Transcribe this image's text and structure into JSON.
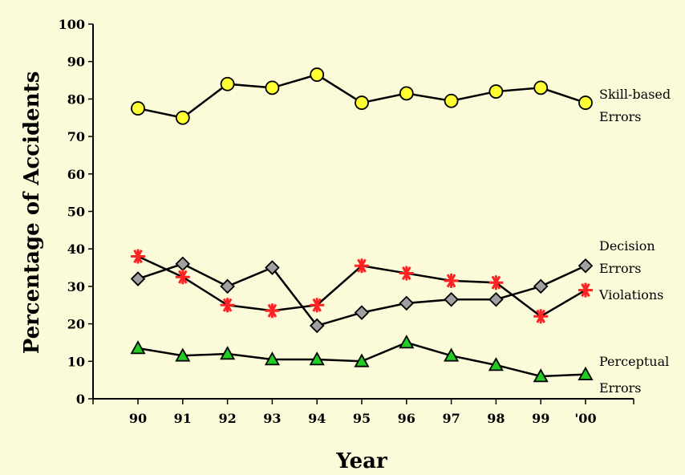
{
  "chart_data": {
    "type": "line",
    "title": "",
    "xlabel": "Year",
    "ylabel": "Percentage of Accidents",
    "categories": [
      "90",
      "91",
      "92",
      "93",
      "94",
      "95",
      "96",
      "97",
      "98",
      "99",
      "'00"
    ],
    "ylim": [
      0,
      100
    ],
    "yticks": [
      "0",
      "10",
      "20",
      "30",
      "40",
      "50",
      "60",
      "70",
      "80",
      "90",
      "100"
    ],
    "grid": false,
    "legend": "none (series labeled at right end of lines)",
    "background": "#fbfbda",
    "series": [
      {
        "name": "Skill-based Errors",
        "label_lines": [
          "Skill-based",
          "Errors"
        ],
        "marker": "circle",
        "fill": "#ffff33",
        "values": [
          77.5,
          75,
          84,
          83,
          86.5,
          79,
          81.5,
          79.5,
          82,
          83,
          79
        ]
      },
      {
        "name": "Decision Errors",
        "label_lines": [
          "Decision",
          "Errors"
        ],
        "marker": "diamond",
        "fill": "#a0a0a0",
        "values": [
          32,
          36,
          30,
          35,
          19.5,
          23,
          25.5,
          26.5,
          26.5,
          30,
          35.5
        ]
      },
      {
        "name": "Violations",
        "label_lines": [
          "Violations"
        ],
        "marker": "asterisk",
        "fill": "#ff2222",
        "values": [
          38,
          32.5,
          25,
          23.5,
          25,
          35.5,
          33.5,
          31.5,
          31,
          22,
          29
        ]
      },
      {
        "name": "Perceptual Errors",
        "label_lines": [
          "Perceptual",
          "Errors"
        ],
        "marker": "triangle",
        "fill": "#22cc22",
        "values": [
          13.5,
          11.5,
          12,
          10.5,
          10.5,
          10,
          15,
          11.5,
          9,
          6,
          6.5
        ]
      }
    ]
  }
}
